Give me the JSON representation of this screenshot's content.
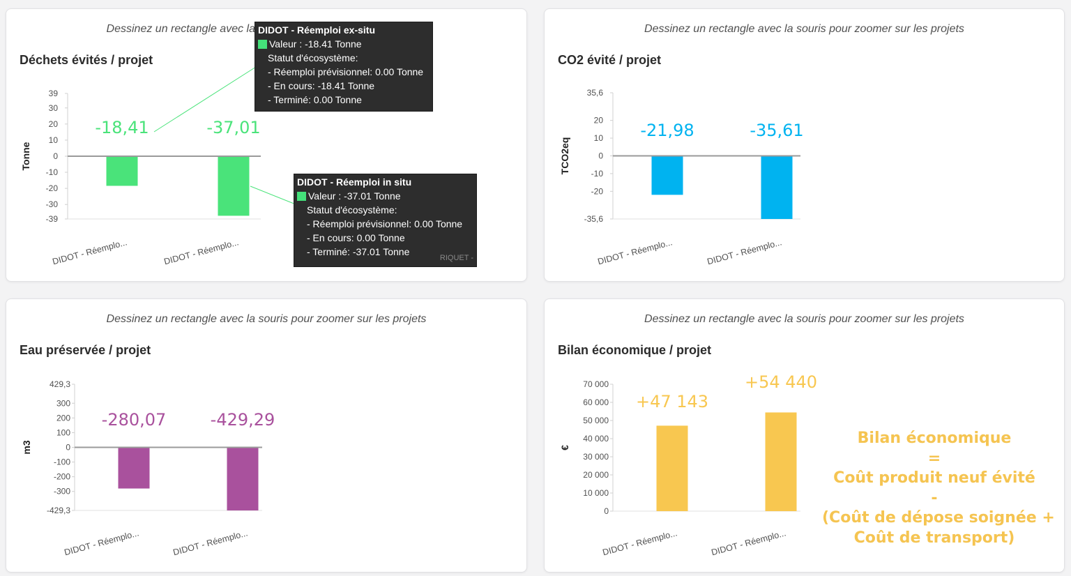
{
  "zoom_hint": "Dessinez un rectangle avec la souris pour zoomer sur les projets",
  "chart_data": [
    {
      "type": "bar",
      "title": "Déchets évités / projet",
      "ylabel": "Tonne",
      "yticks": [
        "39",
        "30",
        "20",
        "10",
        "0",
        "-10",
        "-20",
        "-30",
        "-39"
      ],
      "ylim": [
        -39,
        39
      ],
      "categories": [
        "DIDOT - Réemplo...",
        "DIDOT - Réemplo..."
      ],
      "values": [
        -18.41,
        -37.01
      ],
      "data_labels": [
        "-18,41",
        "-37,01"
      ],
      "color": "#4ae37a"
    },
    {
      "type": "bar",
      "title": "CO2 évité / projet",
      "ylabel": "TCO2eq",
      "yticks": [
        "35,6",
        "20",
        "10",
        "0",
        "-10",
        "-20",
        "-35,6"
      ],
      "ylim": [
        -35.6,
        35.6
      ],
      "categories": [
        "DIDOT - Réemplo...",
        "DIDOT - Réemplo..."
      ],
      "values": [
        -21.98,
        -35.61
      ],
      "data_labels": [
        "-21,98",
        "-35,61"
      ],
      "color": "#00b3f0"
    },
    {
      "type": "bar",
      "title": "Eau préservée / projet",
      "ylabel": "m3",
      "yticks": [
        "429,3",
        "300",
        "200",
        "100",
        "0",
        "-100",
        "-200",
        "-300",
        "-429,3"
      ],
      "ylim": [
        -429.3,
        429.3
      ],
      "categories": [
        "DIDOT - Réemplo...",
        "DIDOT - Réemplo..."
      ],
      "values": [
        -280.07,
        -429.29
      ],
      "data_labels": [
        "-280,07",
        "-429,29"
      ],
      "color": "#a9519d"
    },
    {
      "type": "bar",
      "title": "Bilan économique / projet",
      "ylabel": "€",
      "yticks": [
        "70 000",
        "60 000",
        "50 000",
        "40 000",
        "30 000",
        "20 000",
        "10 000",
        "0"
      ],
      "ylim": [
        0,
        70000
      ],
      "categories": [
        "DIDOT - Réemplo...",
        "DIDOT - Réemplo..."
      ],
      "values": [
        47143,
        54440
      ],
      "data_labels": [
        "+47 143",
        "+54 440"
      ],
      "color": "#f8c750"
    }
  ],
  "tooltips": [
    {
      "title": "DIDOT - Réemploi ex-situ",
      "value": "Valeur : -18.41 Tonne",
      "status_label": "Statut d'écosystème:",
      "lines": [
        "- Réemploi prévisionnel: 0.00 Tonne",
        "- En cours: -18.41 Tonne",
        "- Terminé: 0.00 Tonne"
      ]
    },
    {
      "title": "DIDOT - Réemploi in situ",
      "value": "Valeur : -37.01 Tonne",
      "status_label": "Statut d'écosystème:",
      "lines": [
        "- Réemploi prévisionnel: 0.00 Tonne",
        "- En cours: 0.00 Tonne",
        "- Terminé: -37.01 Tonne"
      ]
    }
  ],
  "hidden_label_fragment": "RIQUET -",
  "economic_note": {
    "lines": [
      "Bilan économique",
      "=",
      "Coût produit neuf évité",
      "-",
      "(Coût de dépose soignée +",
      "Coût de transport)"
    ]
  }
}
